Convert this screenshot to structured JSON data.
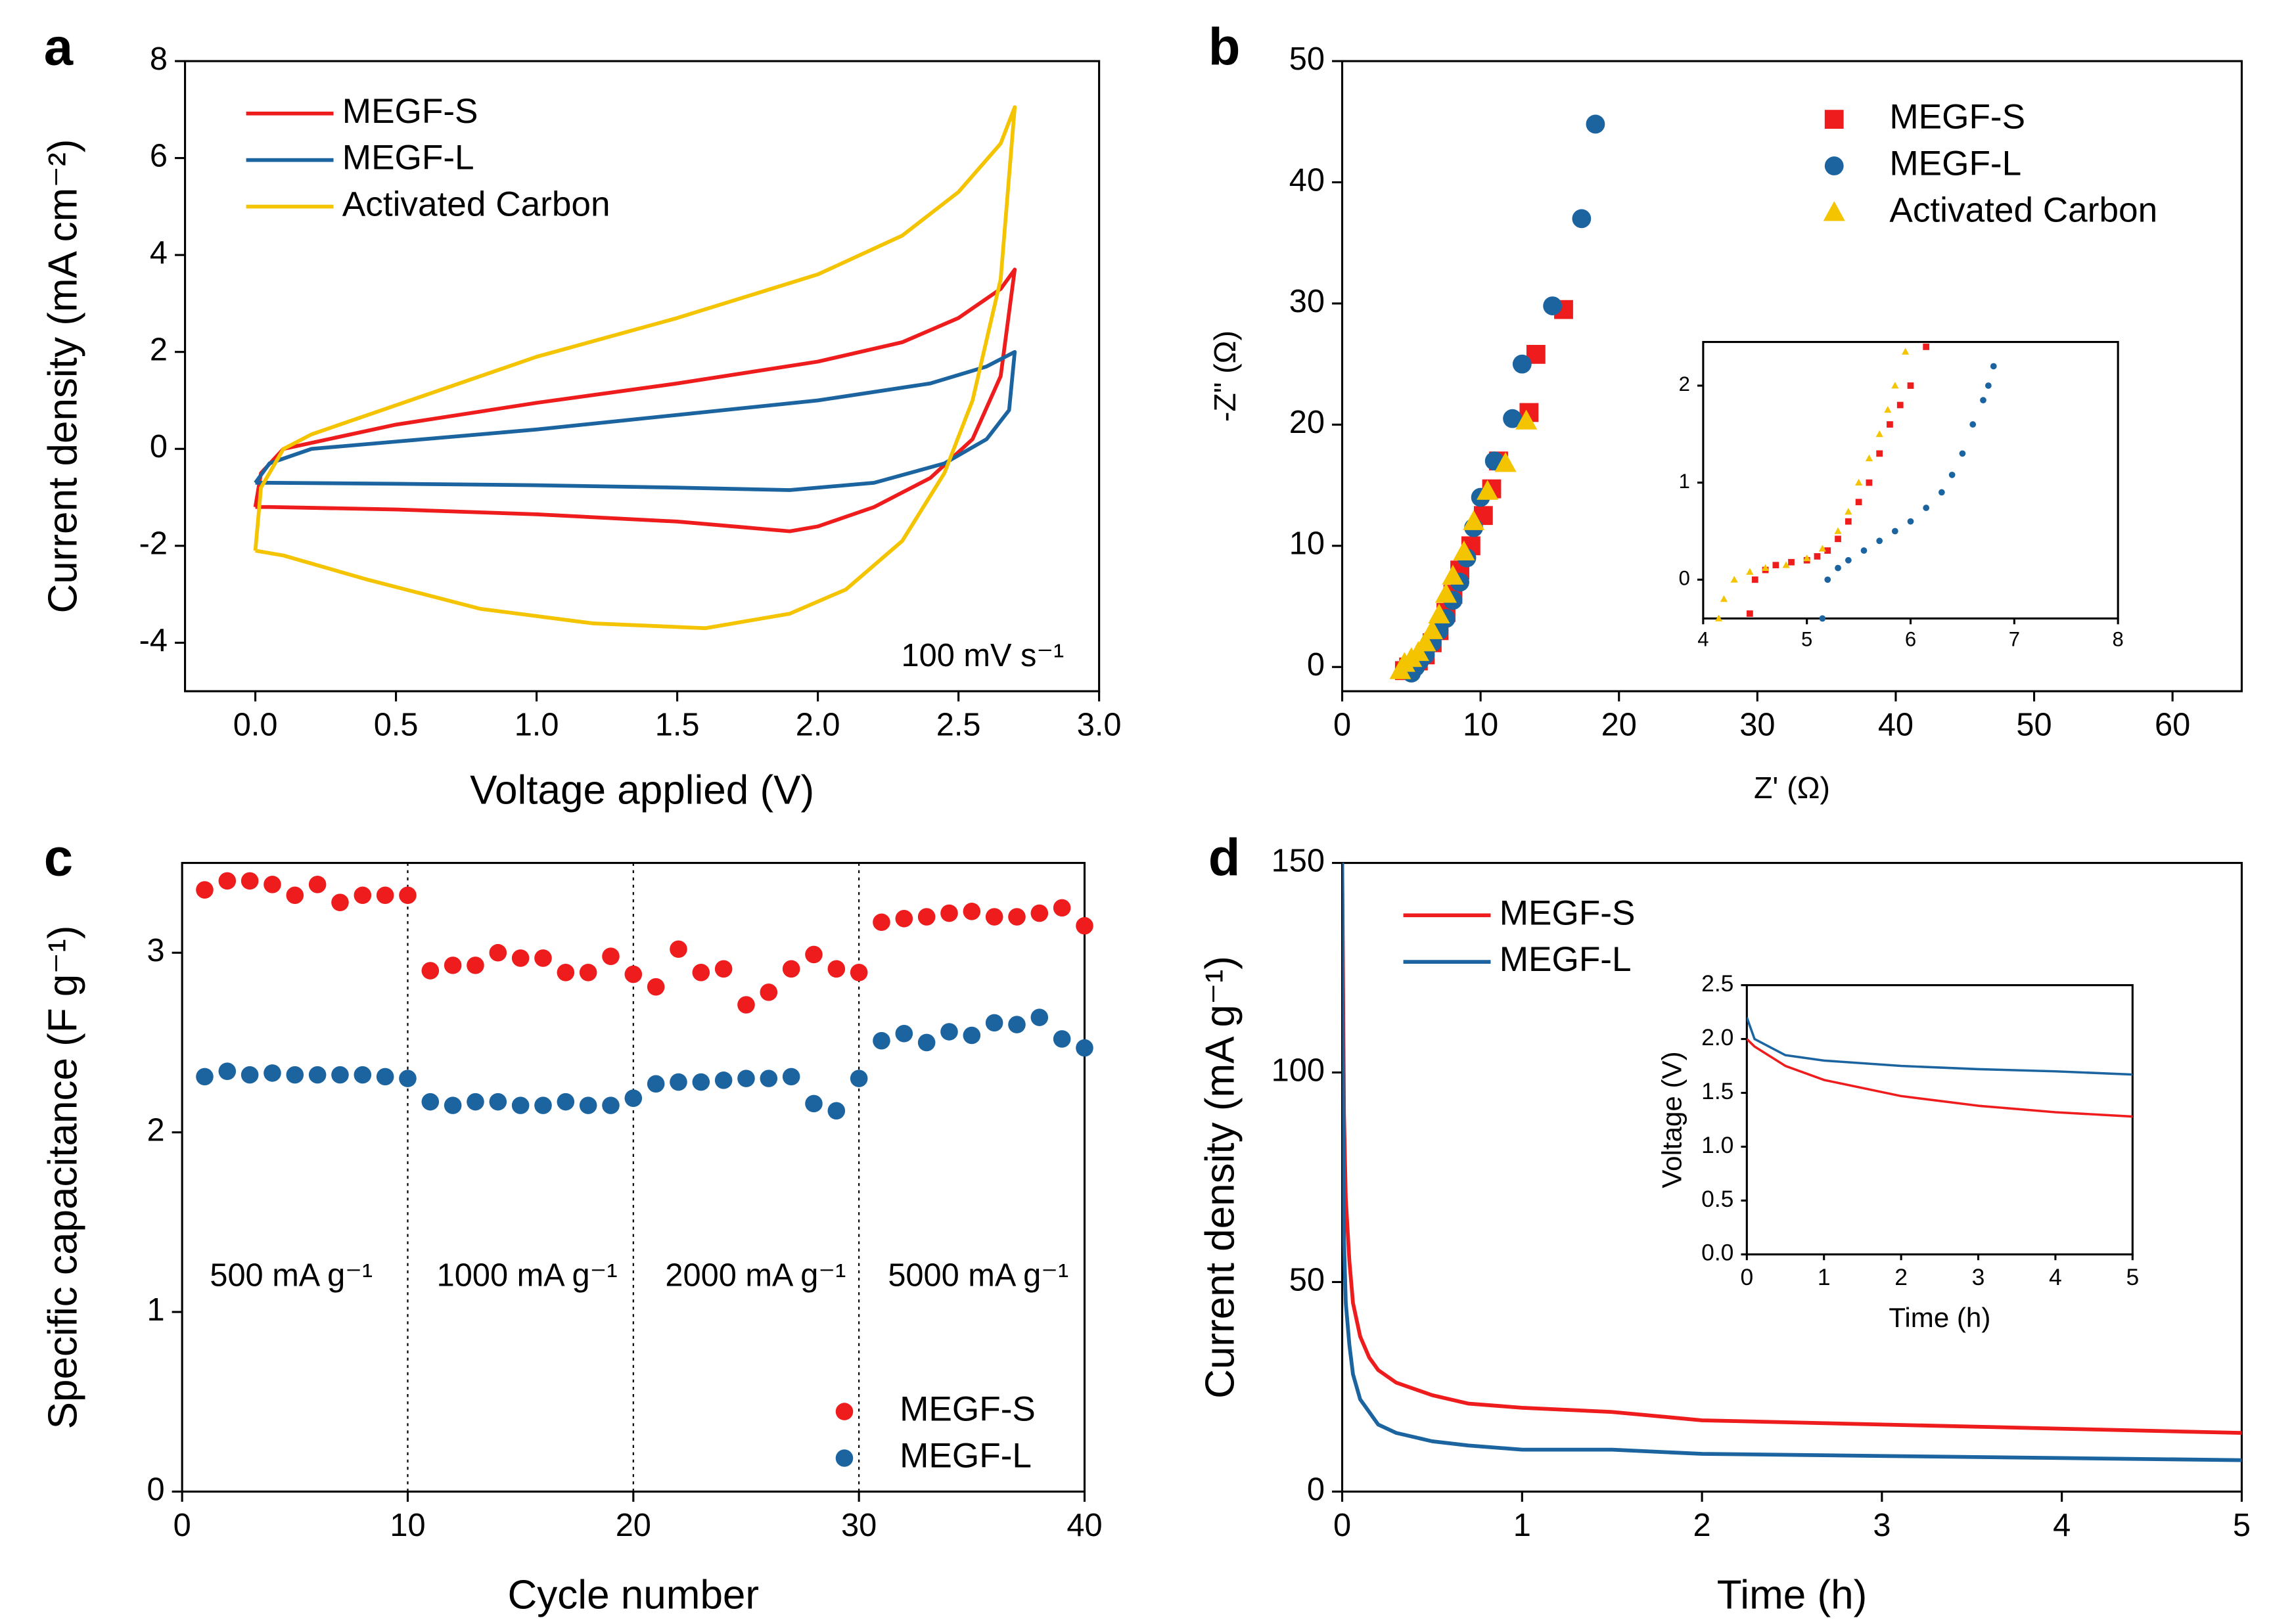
{
  "chart_data": [
    {
      "type": "line",
      "panel_label": "a",
      "xlabel": "Voltage applied (V)",
      "ylabel": "Current density (mA cm⁻²)",
      "xlim": [
        -0.25,
        3.0
      ],
      "ylim": [
        -5,
        8
      ],
      "xticks": [
        {
          "value": 0,
          "label": "0.0"
        },
        {
          "value": 0.5,
          "label": "0.5"
        },
        {
          "value": 1,
          "label": "1.0"
        },
        {
          "value": 1.5,
          "label": "1.5"
        },
        {
          "value": 2,
          "label": "2.0"
        },
        {
          "value": 2.5,
          "label": "2.5"
        },
        {
          "value": 3,
          "label": "3.0"
        }
      ],
      "yticks": [
        -4,
        -2,
        0,
        2,
        4,
        6,
        8
      ],
      "legend": "upper left",
      "annotations": [
        "100 mV s⁻¹"
      ],
      "series": [
        {
          "name": "MEGF-S",
          "color": "#ee1c1c",
          "x": [
            0,
            0.02,
            0.1,
            0.5,
            1.0,
            1.5,
            2.0,
            2.3,
            2.5,
            2.65,
            2.7,
            2.65,
            2.55,
            2.4,
            2.2,
            2.0,
            1.9,
            1.5,
            1.0,
            0.5,
            0.05,
            0
          ],
          "values": [
            -1.2,
            -0.5,
            0,
            0.5,
            0.95,
            1.35,
            1.8,
            2.2,
            2.7,
            3.3,
            3.7,
            1.5,
            0.2,
            -0.6,
            -1.2,
            -1.6,
            -1.7,
            -1.5,
            -1.35,
            -1.25,
            -1.2,
            -1.2
          ]
        },
        {
          "name": "MEGF-L",
          "color": "#1b64a0",
          "x": [
            0,
            0.05,
            0.2,
            0.5,
            1.0,
            1.5,
            2.0,
            2.4,
            2.6,
            2.7,
            2.68,
            2.6,
            2.45,
            2.2,
            1.9,
            1.5,
            1.0,
            0.5,
            0.05,
            0
          ],
          "values": [
            -0.7,
            -0.3,
            0,
            0.15,
            0.4,
            0.7,
            1.0,
            1.35,
            1.7,
            2.0,
            0.8,
            0.2,
            -0.3,
            -0.7,
            -0.85,
            -0.8,
            -0.75,
            -0.72,
            -0.7,
            -0.7
          ]
        },
        {
          "name": "Activated Carbon",
          "color": "#f5c400",
          "x": [
            0,
            0.02,
            0.1,
            0.2,
            0.5,
            1.0,
            1.5,
            2.0,
            2.3,
            2.5,
            2.65,
            2.7,
            2.65,
            2.55,
            2.45,
            2.3,
            2.1,
            1.9,
            1.6,
            1.2,
            0.8,
            0.4,
            0.1,
            0
          ],
          "values": [
            -2.1,
            -0.8,
            0,
            0.3,
            0.9,
            1.9,
            2.7,
            3.6,
            4.4,
            5.3,
            6.3,
            7.05,
            3.5,
            1.0,
            -0.5,
            -1.9,
            -2.9,
            -3.4,
            -3.7,
            -3.6,
            -3.3,
            -2.7,
            -2.2,
            -2.1
          ]
        }
      ]
    },
    {
      "type": "scatter",
      "panel_label": "b",
      "xlabel": "Z' (Ω)",
      "ylabel": "-Z\" (Ω)",
      "xlim": [
        0,
        65
      ],
      "ylim": [
        -2,
        50
      ],
      "xticks": [
        0,
        10,
        20,
        30,
        40,
        50,
        60
      ],
      "yticks": [
        0,
        10,
        20,
        30,
        40,
        50
      ],
      "legend": "upper right",
      "series": [
        {
          "name": "MEGF-S",
          "color": "#ee1c1c",
          "marker": "square",
          "x": [
            4.5,
            4.8,
            5.5,
            6,
            6.5,
            7,
            7.5,
            8,
            8.5,
            9.3,
            10.2,
            10.8,
            11.3,
            13.5,
            14,
            16
          ],
          "values": [
            -0.3,
            0,
            0.5,
            1,
            2,
            3,
            4.5,
            6,
            8,
            10,
            12.5,
            14.7,
            17,
            21,
            25.8,
            29.5
          ]
        },
        {
          "name": "MEGF-L",
          "color": "#1b64a0",
          "marker": "circle",
          "x": [
            5,
            5.3,
            5.6,
            6,
            6.5,
            7,
            7.5,
            8,
            8.5,
            9,
            9.5,
            10,
            11,
            12.3,
            13,
            15.2,
            17.3,
            18.3
          ],
          "values": [
            -0.5,
            0,
            0.5,
            1,
            2,
            3,
            4,
            5.5,
            7,
            9,
            11.5,
            14,
            17,
            20.5,
            25,
            29.8,
            37,
            44.8
          ]
        },
        {
          "name": "Activated Carbon",
          "color": "#f5c400",
          "marker": "triangle",
          "x": [
            4.2,
            4.5,
            5,
            5.5,
            6,
            6.5,
            7,
            7.5,
            8,
            8.8,
            9.5,
            10.5,
            11.8,
            13.3
          ],
          "values": [
            -0.3,
            0.3,
            0.7,
            1.2,
            2,
            3,
            4.3,
            6,
            7.5,
            9.5,
            12,
            14.5,
            16.8,
            20.3
          ]
        }
      ]
    },
    {
      "type": "scatter",
      "xlim": [
        4,
        8
      ],
      "ylim": [
        -0.4,
        2.45
      ],
      "xticks": [
        4,
        5,
        6,
        7,
        8
      ],
      "yticks": [
        0,
        1,
        2
      ],
      "series": [
        {
          "color": "#ee1c1c",
          "marker": "square",
          "x": [
            4.45,
            4.5,
            4.6,
            4.7,
            4.85,
            5.0,
            5.1,
            5.2,
            5.3,
            5.4,
            5.5,
            5.6,
            5.7,
            5.8,
            5.9,
            6.0,
            6.15
          ],
          "values": [
            -0.35,
            0,
            0.1,
            0.15,
            0.18,
            0.2,
            0.24,
            0.3,
            0.42,
            0.6,
            0.8,
            1.0,
            1.3,
            1.6,
            1.8,
            2.0,
            2.4
          ]
        },
        {
          "color": "#1b64a0",
          "marker": "circle",
          "x": [
            5.15,
            5.2,
            5.3,
            5.4,
            5.55,
            5.7,
            5.85,
            6.0,
            6.15,
            6.3,
            6.4,
            6.5,
            6.6,
            6.7,
            6.75,
            6.8
          ],
          "values": [
            -0.4,
            0,
            0.12,
            0.2,
            0.3,
            0.4,
            0.5,
            0.6,
            0.74,
            0.9,
            1.08,
            1.3,
            1.6,
            1.85,
            2.0,
            2.2
          ]
        },
        {
          "color": "#f5c400",
          "marker": "triangle",
          "x": [
            4.15,
            4.2,
            4.3,
            4.45,
            4.6,
            4.8,
            5.0,
            5.15,
            5.3,
            5.4,
            5.5,
            5.6,
            5.7,
            5.78,
            5.85,
            5.95
          ],
          "values": [
            -0.4,
            -0.2,
            0,
            0.08,
            0.12,
            0.15,
            0.22,
            0.32,
            0.5,
            0.7,
            1.0,
            1.25,
            1.5,
            1.75,
            2.0,
            2.35
          ]
        }
      ]
    },
    {
      "type": "scatter",
      "panel_label": "c",
      "xlabel": "Cycle number",
      "ylabel": "Specific capacitance (F g⁻¹)",
      "xlim": [
        0,
        40
      ],
      "ylim": [
        0,
        3.5
      ],
      "xticks": [
        0,
        10,
        20,
        30,
        40
      ],
      "yticks": [
        0,
        1,
        2,
        3
      ],
      "legend": "lower right",
      "vlines": [
        10,
        20,
        30
      ],
      "annotations": [
        "500 mA g⁻¹",
        "1000 mA g⁻¹",
        "2000 mA g⁻¹",
        "5000 mA g⁻¹"
      ],
      "x": [
        1,
        2,
        3,
        4,
        5,
        6,
        7,
        8,
        9,
        10,
        11,
        12,
        13,
        14,
        15,
        16,
        17,
        18,
        19,
        20,
        21,
        22,
        23,
        24,
        25,
        26,
        27,
        28,
        29,
        30,
        31,
        32,
        33,
        34,
        35,
        36,
        37,
        38,
        39,
        40
      ],
      "series": [
        {
          "name": "MEGF-S",
          "color": "#ee1c1c",
          "marker": "circle",
          "values": [
            3.35,
            3.4,
            3.4,
            3.38,
            3.32,
            3.38,
            3.28,
            3.32,
            3.32,
            3.32,
            2.9,
            2.93,
            2.93,
            3.0,
            2.97,
            2.97,
            2.89,
            2.89,
            2.98,
            2.88,
            2.81,
            3.02,
            2.89,
            2.91,
            2.71,
            2.78,
            2.91,
            2.99,
            2.91,
            2.89,
            3.17,
            3.19,
            3.2,
            3.22,
            3.23,
            3.2,
            3.2,
            3.22,
            3.25,
            3.15
          ]
        },
        {
          "name": "MEGF-L",
          "color": "#1b64a0",
          "marker": "circle",
          "values": [
            2.31,
            2.34,
            2.32,
            2.33,
            2.32,
            2.32,
            2.32,
            2.32,
            2.31,
            2.3,
            2.17,
            2.15,
            2.17,
            2.17,
            2.15,
            2.15,
            2.17,
            2.15,
            2.15,
            2.19,
            2.27,
            2.28,
            2.28,
            2.29,
            2.3,
            2.3,
            2.31,
            2.16,
            2.12,
            2.3,
            2.51,
            2.55,
            2.5,
            2.56,
            2.54,
            2.61,
            2.6,
            2.64,
            2.52,
            2.47
          ]
        }
      ]
    },
    {
      "type": "line",
      "panel_label": "d",
      "xlabel": "Time (h)",
      "ylabel": "Current density (mA g⁻¹)",
      "xlim": [
        0,
        5
      ],
      "ylim": [
        0,
        150
      ],
      "xticks": [
        0,
        1,
        2,
        3,
        4,
        5
      ],
      "yticks": [
        0,
        50,
        100,
        150
      ],
      "legend": "upper left",
      "x": [
        0,
        0.005,
        0.01,
        0.02,
        0.04,
        0.06,
        0.1,
        0.15,
        0.2,
        0.3,
        0.5,
        0.7,
        1,
        1.5,
        2,
        3,
        4,
        5
      ],
      "series": [
        {
          "name": "MEGF-S",
          "color": "#ee1c1c",
          "values": [
            150,
            120,
            90,
            70,
            55,
            45,
            37,
            32,
            29,
            26,
            23,
            21,
            20,
            19,
            17,
            16,
            15,
            14
          ]
        },
        {
          "name": "MEGF-L",
          "color": "#1b64a0",
          "values": [
            150,
            90,
            60,
            45,
            35,
            28,
            22,
            19,
            16,
            14,
            12,
            11,
            10,
            10,
            9,
            8.5,
            8,
            7.5
          ]
        }
      ]
    },
    {
      "type": "line",
      "xlabel": "Time (h)",
      "ylabel": "Voltage (V)",
      "xlim": [
        0,
        5
      ],
      "ylim": [
        0,
        2.5
      ],
      "xticks": [
        0,
        1,
        2,
        3,
        4,
        5
      ],
      "yticks": [
        {
          "value": 0,
          "label": "0.0"
        },
        {
          "value": 0.5,
          "label": "0.5"
        },
        {
          "value": 1,
          "label": "1.0"
        },
        {
          "value": 1.5,
          "label": "1.5"
        },
        {
          "value": 2,
          "label": "2.0"
        },
        {
          "value": 2.5,
          "label": "2.5"
        }
      ],
      "x": [
        0,
        0.1,
        0.5,
        1,
        2,
        3,
        4,
        5
      ],
      "series": [
        {
          "color": "#ee1c1c",
          "values": [
            2.0,
            1.93,
            1.75,
            1.62,
            1.47,
            1.38,
            1.32,
            1.28
          ]
        },
        {
          "color": "#1b64a0",
          "values": [
            2.2,
            2.0,
            1.85,
            1.8,
            1.75,
            1.72,
            1.7,
            1.67
          ]
        }
      ]
    }
  ]
}
